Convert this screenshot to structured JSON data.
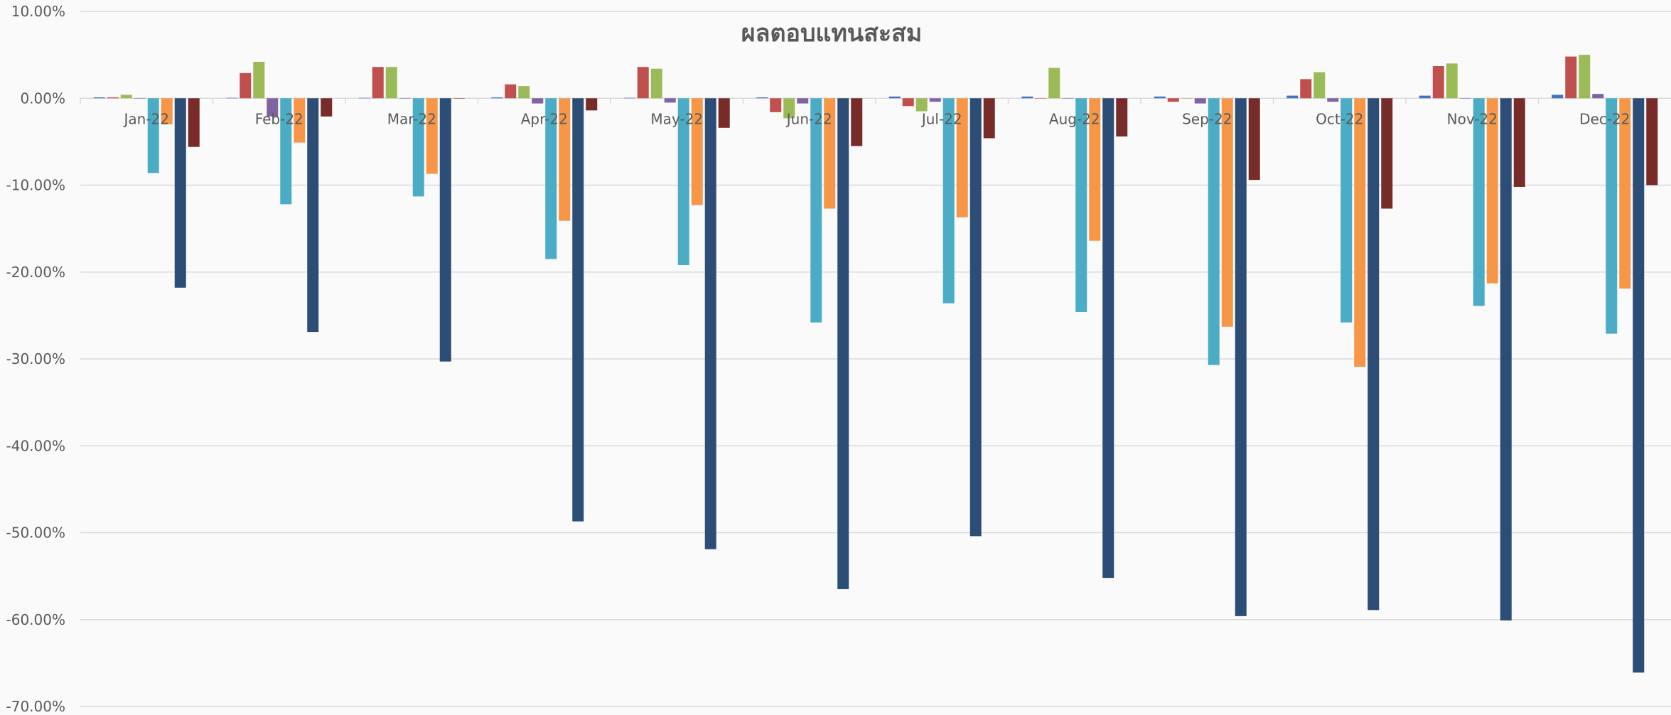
{
  "chart_data": {
    "type": "bar",
    "title": "ผลตอบแทนสะสม",
    "xlabel": "",
    "ylabel": "",
    "ylim": [
      -70,
      10
    ],
    "y_tick_step": 10,
    "y_tick_format": "percent_2dp",
    "grid": "horizontal",
    "legend": "none",
    "categories": [
      "Jan-22",
      "Feb-22",
      "Mar-22",
      "Apr-22",
      "May-22",
      "Jun-22",
      "Jul-22",
      "Aug-22",
      "Sep-22",
      "Oct-22",
      "Nov-22",
      "Dec-22"
    ],
    "series": [
      {
        "color": "#4472c4",
        "values": [
          0.1,
          0.05,
          0.05,
          0.1,
          0.05,
          0.1,
          0.2,
          0.2,
          0.2,
          0.3,
          0.3,
          0.4
        ]
      },
      {
        "color": "#c0504d",
        "values": [
          0.1,
          2.9,
          3.6,
          1.6,
          3.6,
          -1.6,
          -0.9,
          0.0,
          -0.4,
          2.2,
          3.7,
          4.8
        ]
      },
      {
        "color": "#9bbb59",
        "values": [
          0.4,
          4.2,
          3.6,
          1.4,
          3.4,
          -2.3,
          -1.5,
          3.5,
          0.0,
          3.0,
          4.0,
          5.0
        ]
      },
      {
        "color": "#8064a2",
        "values": [
          0.0,
          -2.1,
          0.0,
          -0.6,
          -0.5,
          -0.6,
          -0.4,
          0.0,
          -0.6,
          -0.4,
          0.0,
          0.5
        ]
      },
      {
        "color": "#4bacc6",
        "values": [
          -8.6,
          -12.2,
          -11.3,
          -18.5,
          -19.2,
          -25.8,
          -23.6,
          -24.6,
          -30.7,
          -25.8,
          -23.9,
          -27.1
        ]
      },
      {
        "color": "#f79646",
        "values": [
          -3.0,
          -5.1,
          -8.7,
          -14.1,
          -12.3,
          -12.7,
          -13.7,
          -16.4,
          -26.3,
          -30.9,
          -21.3,
          -21.9
        ]
      },
      {
        "color": "#2c4d75",
        "values": [
          -21.8,
          -26.9,
          -30.3,
          -48.7,
          -51.9,
          -56.5,
          -50.4,
          -55.2,
          -59.6,
          -58.9,
          -60.1,
          -66.1
        ]
      },
      {
        "color": "#772c2a",
        "values": [
          -5.6,
          -2.1,
          0.0,
          -1.4,
          -3.4,
          -5.5,
          -4.6,
          -4.4,
          -9.4,
          -12.7,
          -10.2,
          -10.0
        ]
      }
    ]
  }
}
